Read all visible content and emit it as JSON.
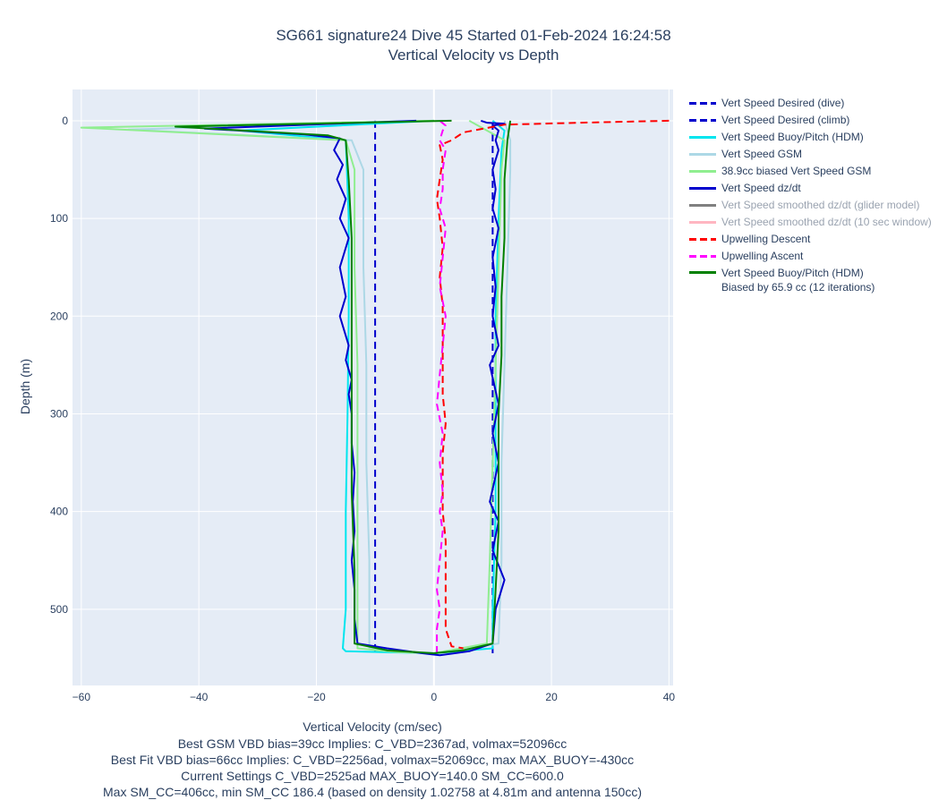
{
  "title_line1": "SG661 signature24 Dive 45 Started 01-Feb-2024 16:24:58",
  "title_line2": "Vertical Velocity vs Depth",
  "chart_data": {
    "type": "line",
    "xlabel": "Vertical Velocity (cm/sec)",
    "ylabel": "Depth (m)",
    "xlim": [
      -61.5,
      40.7
    ],
    "ylim": [
      578,
      -32
    ],
    "y_reversed": true,
    "grid": true,
    "legend_placement": "right",
    "xticks": [
      -60,
      -40,
      -20,
      0,
      20,
      40
    ],
    "yticks": [
      0,
      100,
      200,
      300,
      400,
      500
    ],
    "xtick_labels": [
      "−60",
      "−40",
      "−20",
      "0",
      "20",
      "40"
    ],
    "ytick_labels": [
      "0",
      "100",
      "200",
      "300",
      "400",
      "500"
    ],
    "series": [
      {
        "name": "Vert Speed Desired (dive)",
        "color": "#0000cd",
        "dash": "dash",
        "x": [
          -10,
          -10
        ],
        "y": [
          0,
          545
        ]
      },
      {
        "name": "Vert Speed Desired (climb)",
        "color": "#0000cd",
        "dash": "dash",
        "x": [
          10,
          10
        ],
        "y": [
          545,
          0
        ]
      },
      {
        "name": "Vert Speed Buoy/Pitch (HDM)",
        "color": "#00e5ee",
        "dash": "solid",
        "x": [
          0,
          -33,
          -15,
          -14.5,
          -14.5,
          -14.7,
          -15,
          -15,
          -15.5,
          -15,
          -8,
          0,
          10,
          10,
          10.5,
          10.5,
          10.5,
          11,
          11.5,
          12,
          10
        ],
        "y": [
          0,
          10,
          20,
          100,
          200,
          300,
          400,
          500,
          540,
          543,
          544,
          545,
          540,
          500,
          400,
          300,
          200,
          100,
          30,
          10,
          0
        ]
      },
      {
        "name": "Vert Speed GSM",
        "color": "#add8e6",
        "dash": "solid",
        "x": [
          0,
          -52,
          -14,
          -12,
          -12,
          -11.5,
          -11.5,
          -11,
          -11,
          -5,
          0,
          11,
          11.5,
          11.5,
          12,
          12.5,
          13,
          13,
          12
        ],
        "y": [
          0,
          9,
          20,
          50,
          150,
          250,
          350,
          450,
          540,
          544,
          545,
          535,
          450,
          350,
          250,
          150,
          50,
          20,
          0
        ]
      },
      {
        "name": "38.9cc biased Vert Speed GSM",
        "color": "#90ee90",
        "dash": "solid",
        "x": [
          0,
          -60,
          -15,
          -13.5,
          -13.5,
          -13,
          -13,
          -13,
          -13,
          -6,
          0,
          9,
          9.5,
          10,
          10.5,
          11,
          11.5,
          12,
          6
        ],
        "y": [
          0,
          7,
          20,
          50,
          150,
          250,
          350,
          450,
          540,
          544,
          545,
          535,
          450,
          350,
          250,
          150,
          50,
          20,
          0
        ]
      },
      {
        "name": "Vert Speed dz/dt",
        "color": "#0000cd",
        "dash": "solid",
        "x": [
          -3,
          -39,
          -22,
          -16,
          -17,
          -15.5,
          -16.5,
          -15,
          -16,
          -14.5,
          -16,
          -15,
          -16,
          -14.5,
          -15,
          -14,
          -14.5,
          -14,
          -14,
          -13.5,
          -13.8,
          -13.5,
          -14,
          -13.5,
          -13.5,
          -13,
          -8,
          -2,
          1,
          6,
          10,
          10.5,
          12,
          10,
          11,
          9.5,
          11,
          10,
          11,
          9.5,
          11,
          10,
          10.5,
          10,
          11,
          10,
          10.5,
          10,
          11,
          10.5,
          11,
          10,
          12,
          9,
          8
        ],
        "y": [
          0,
          8,
          14,
          18,
          30,
          45,
          60,
          80,
          100,
          120,
          150,
          180,
          200,
          230,
          245,
          265,
          280,
          300,
          330,
          360,
          390,
          420,
          450,
          480,
          510,
          535,
          540,
          545,
          547,
          543,
          535,
          500,
          470,
          440,
          410,
          390,
          350,
          320,
          290,
          250,
          230,
          200,
          170,
          140,
          110,
          90,
          70,
          50,
          30,
          20,
          10,
          5,
          3,
          2,
          0
        ]
      },
      {
        "name": "Vert Speed smoothed dz/dt (glider model)",
        "color": "#808080",
        "dash": "solid",
        "muted": true,
        "x": [],
        "y": []
      },
      {
        "name": "Vert Speed smoothed dz/dt (10 sec window)",
        "color": "#ffb6c1",
        "dash": "solid",
        "muted": true,
        "x": [],
        "y": []
      },
      {
        "name": "Upwelling Descent",
        "color": "#ff0000",
        "dash": "dash",
        "x": [
          40,
          25,
          12,
          5,
          3,
          1,
          1.5,
          1,
          0.5,
          1,
          1.5,
          1,
          1.5,
          1.5,
          1.5,
          1.5,
          2,
          1.5,
          1.5,
          1.5,
          2,
          2,
          2,
          2,
          3,
          5
        ],
        "y": [
          0,
          2,
          4,
          12,
          20,
          25,
          40,
          60,
          80,
          100,
          130,
          160,
          190,
          220,
          250,
          280,
          310,
          340,
          370,
          400,
          430,
          460,
          490,
          520,
          538,
          540
        ]
      },
      {
        "name": "Upwelling Ascent",
        "color": "#ff00ff",
        "dash": "dash",
        "x": [
          0.5,
          0.5,
          1,
          0.5,
          1,
          1.5,
          1,
          1.5,
          1,
          1.5,
          0.5,
          1,
          1.5,
          2,
          1,
          1.5,
          2,
          1,
          1.5,
          1.5,
          2,
          1,
          1.5,
          2,
          1
        ],
        "y": [
          545,
          520,
          500,
          480,
          450,
          420,
          400,
          380,
          350,
          320,
          290,
          260,
          230,
          200,
          170,
          140,
          110,
          90,
          70,
          50,
          30,
          20,
          10,
          5,
          0
        ]
      },
      {
        "name": "Vert Speed Buoy/Pitch (HDM)\nBiased by 65.9 cc (12 iterations)",
        "color": "#008000",
        "dash": "solid",
        "x": [
          3,
          -44,
          -18,
          -15,
          -14.5,
          -14,
          -14,
          -14,
          -14,
          -14,
          -13.5,
          -13.5,
          -8,
          0,
          5,
          10,
          10.5,
          11,
          11,
          11,
          11.5,
          11.5,
          12,
          12,
          12.5,
          13
        ],
        "y": [
          0,
          6,
          15,
          20,
          60,
          120,
          180,
          240,
          300,
          380,
          460,
          535,
          542,
          545,
          542,
          535,
          480,
          420,
          360,
          300,
          240,
          180,
          120,
          60,
          20,
          0
        ]
      }
    ]
  },
  "notes": [
    "Best GSM VBD bias=39cc Implies: C_VBD=2367ad, volmax=52096cc",
    "Best Fit VBD bias=66cc Implies: C_VBD=2256ad, volmax=52069cc, max MAX_BUOY=-430cc",
    "Current Settings C_VBD=2525ad MAX_BUOY=140.0 SM_CC=600.0",
    "Max SM_CC=406cc, min SM_CC 186.4 (based on density 1.02758 at 4.81m and antenna 150cc)"
  ]
}
